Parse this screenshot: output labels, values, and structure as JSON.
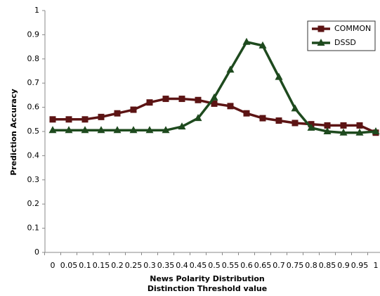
{
  "chart_data": {
    "type": "line",
    "x_label": [
      "News Polarity Distribution",
      "Distinction Threshold value"
    ],
    "y_label": "Prediction Accuracy",
    "categories": [
      "0",
      "0.05",
      "0.1",
      "0.15",
      "0.2",
      "0.25",
      "0.3",
      "0.35",
      "0.4",
      "0.45",
      "0.5",
      "0.55",
      "0.6",
      "0.65",
      "0.7",
      "0.75",
      "0.8",
      "0.85",
      "0.9",
      "0.95",
      "1"
    ],
    "series": [
      {
        "name": "COMMON",
        "color": "#5c1414",
        "marker": "square",
        "values": [
          0.55,
          0.55,
          0.55,
          0.56,
          0.575,
          0.59,
          0.62,
          0.635,
          0.635,
          0.63,
          0.615,
          0.605,
          0.575,
          0.555,
          0.545,
          0.535,
          0.53,
          0.525,
          0.525,
          0.525,
          0.495
        ]
      },
      {
        "name": "DSSD",
        "color": "#1e4a1e",
        "marker": "triangle",
        "values": [
          0.505,
          0.505,
          0.505,
          0.505,
          0.505,
          0.505,
          0.505,
          0.505,
          0.52,
          0.555,
          0.64,
          0.755,
          0.87,
          0.855,
          0.725,
          0.595,
          0.515,
          0.5,
          0.495,
          0.495,
          0.5
        ]
      }
    ],
    "ylim": [
      0,
      1
    ],
    "yticks": [
      0,
      0.1,
      0.2,
      0.3,
      0.4,
      0.5,
      0.6,
      0.7,
      0.8,
      0.9,
      1
    ],
    "grid": false,
    "legend": "top-right"
  }
}
